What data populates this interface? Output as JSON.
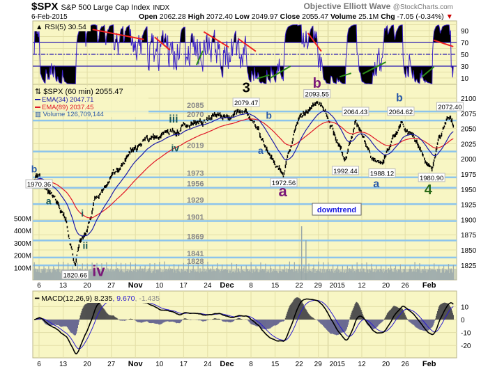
{
  "header": {
    "symbol": "$SPX",
    "name": "S&P 500 Large Cap Index",
    "exchange": "INDX",
    "date": "6-Feb-2015",
    "brand": "Objective Elliott Wave",
    "source": "@StockCharts.com",
    "open_label": "Open",
    "open": "2062.28",
    "high_label": "High",
    "high": "2072.40",
    "low_label": "Low",
    "low": "2049.97",
    "close_label": "Close",
    "close": "2055.47",
    "volume_label": "Volume",
    "volume": "25.1M",
    "chg_label": "Chg",
    "chg": "-7.05 (-0.34%)",
    "chg_arrow": "▼"
  },
  "colors": {
    "panel": "#f8f6c4",
    "grid": "#e2dea6",
    "level": "#8cc4ec",
    "ema34": "#1a1aa8",
    "ema89": "#e01828",
    "rsi": "#3a20c8"
  },
  "chart_data": [
    {
      "type": "line",
      "panel": "rsi",
      "title": "RSI(5) 30.54",
      "ylim": [
        0,
        100
      ],
      "ticks": [
        10,
        30,
        50,
        70,
        90
      ],
      "ref_lines": [
        30,
        50,
        70
      ],
      "trendlines_red": [
        [
          12.1,
          92,
          22.8,
          75
        ],
        [
          25,
          79,
          28.2,
          57
        ],
        [
          35.2,
          88,
          40.4,
          62
        ],
        [
          42.4,
          76,
          46,
          55
        ],
        [
          56.8,
          86,
          59.6,
          55
        ],
        [
          82.9,
          74,
          87,
          63
        ]
      ],
      "trendlines_green": [
        [
          33.7,
          32,
          35,
          56
        ],
        [
          46.3,
          9,
          48.8,
          15
        ],
        [
          49,
          10,
          53.2,
          30
        ],
        [
          63.4,
          12,
          65.8,
          18
        ],
        [
          68.2,
          17,
          73,
          37
        ],
        [
          80.5,
          12,
          83,
          29
        ]
      ]
    },
    {
      "type": "line",
      "panel": "price",
      "legend": [
        "$SPX (60 min) 2055.47",
        "EMA(34) 2047.71",
        "EMA(89) 2037.45",
        "Volume 126,709,144"
      ],
      "ylim": [
        1800,
        2120
      ],
      "ticks": [
        1825,
        1850,
        1875,
        1900,
        1925,
        1950,
        1975,
        2000,
        2025,
        2050,
        2075,
        2100
      ],
      "x_unit": "trading days since 3-Oct-2014",
      "price_keypoints": [
        [
          0,
          1962
        ],
        [
          1,
          1970.36
        ],
        [
          3,
          1942
        ],
        [
          5,
          1925
        ],
        [
          6.5,
          1900
        ],
        [
          7.5,
          1860
        ],
        [
          8.5,
          1820.66
        ],
        [
          9.5,
          1870
        ],
        [
          11,
          1880
        ],
        [
          12.5,
          1930
        ],
        [
          15,
          1960
        ],
        [
          18,
          1985
        ],
        [
          20,
          2015
        ],
        [
          23,
          2028
        ],
        [
          27,
          2040
        ],
        [
          31,
          2050
        ],
        [
          35,
          2063
        ],
        [
          38,
          2072
        ],
        [
          40,
          2068
        ],
        [
          44,
          2079.47
        ],
        [
          46,
          2055
        ],
        [
          48,
          2020
        ],
        [
          50,
          1995
        ],
        [
          51.8,
          1972.56
        ],
        [
          53,
          2012
        ],
        [
          55,
          2068
        ],
        [
          57,
          2085
        ],
        [
          58.7,
          2093.55
        ],
        [
          60,
          2082
        ],
        [
          62,
          2045
        ],
        [
          64.6,
          1992.44
        ],
        [
          66.7,
          2064.43
        ],
        [
          68,
          2040
        ],
        [
          70,
          2000
        ],
        [
          72.2,
          1988.12
        ],
        [
          74,
          2025
        ],
        [
          76.1,
          2064.62
        ],
        [
          78,
          2045
        ],
        [
          80,
          2015
        ],
        [
          82.5,
          1980.9
        ],
        [
          84,
          2035
        ],
        [
          86.3,
          2072.4
        ],
        [
          87,
          2055.47
        ]
      ],
      "level_lines": [
        "2085",
        "2070",
        "2019",
        "1973",
        "1956",
        "1929",
        "1901",
        "1869",
        "1841",
        "1828"
      ],
      "price_labels": [
        [
          1,
          1970.36,
          "1970.36"
        ],
        [
          8.5,
          1820.66,
          "1820.66"
        ],
        [
          44,
          2079.47,
          "2079.47"
        ],
        [
          51.8,
          1972.56,
          "1972.56"
        ],
        [
          58.7,
          2093.55,
          "2093.55"
        ],
        [
          66.7,
          2064.43,
          "2064.43"
        ],
        [
          64.6,
          1992.44,
          "1992.44"
        ],
        [
          72.2,
          1988.12,
          "1988.12"
        ],
        [
          76.1,
          2064.62,
          "2064.62"
        ],
        [
          82.5,
          1980.9,
          "1980.90"
        ],
        [
          86.3,
          2072.4,
          "2072.40"
        ]
      ],
      "wave_labels": [
        [
          0,
          1978,
          "b",
          "blue",
          14
        ],
        [
          3,
          1925,
          "a",
          "teal",
          14
        ],
        [
          10,
          1905,
          "i",
          "teal",
          14
        ],
        [
          10.6,
          1852,
          "ii",
          "teal",
          14
        ],
        [
          12.5,
          1806,
          "iv",
          "purple",
          22
        ],
        [
          29.5,
          2060,
          "iii",
          "teal",
          16
        ],
        [
          30,
          2012,
          "iv",
          "teal",
          14
        ],
        [
          44,
          2110,
          "3",
          "black",
          20
        ],
        [
          48.7,
          2066,
          "b",
          "blue",
          14
        ],
        [
          47,
          2008,
          "a",
          "blue",
          14
        ],
        [
          51.6,
          1943,
          "a",
          "purple",
          22
        ],
        [
          58.7,
          2117,
          "b",
          "purple",
          20
        ],
        [
          75.8,
          2095,
          "b",
          "blue",
          16
        ],
        [
          71,
          1958,
          "a",
          "blue",
          16
        ],
        [
          81.8,
          1945,
          "4",
          "green",
          20
        ]
      ],
      "volume_ticks": [
        "100M",
        "200M",
        "300M",
        "400M",
        "500M"
      ],
      "note": "downtrend"
    },
    {
      "type": "line",
      "panel": "macd",
      "title_main": "MACD(12,26,9) 8.235",
      "title_signal": ", 9.670",
      "title_hist": ", -1.435",
      "ylim": [
        -25,
        20
      ],
      "ticks": [
        -20,
        -10,
        0,
        10
      ]
    }
  ],
  "x_ticks": [
    [
      1,
      "6"
    ],
    [
      6,
      "13"
    ],
    [
      11,
      "20"
    ],
    [
      16,
      "27"
    ],
    [
      21,
      "Nov"
    ],
    [
      26,
      "10"
    ],
    [
      31,
      "17"
    ],
    [
      36,
      "24"
    ],
    [
      40,
      "Dec"
    ],
    [
      45,
      "8"
    ],
    [
      50,
      "15"
    ],
    [
      55,
      "22"
    ],
    [
      59,
      "29"
    ],
    [
      61,
      "2015"
    ],
    [
      68,
      "12"
    ],
    [
      73,
      "20"
    ],
    [
      77,
      "26"
    ],
    [
      82,
      "Feb"
    ]
  ]
}
